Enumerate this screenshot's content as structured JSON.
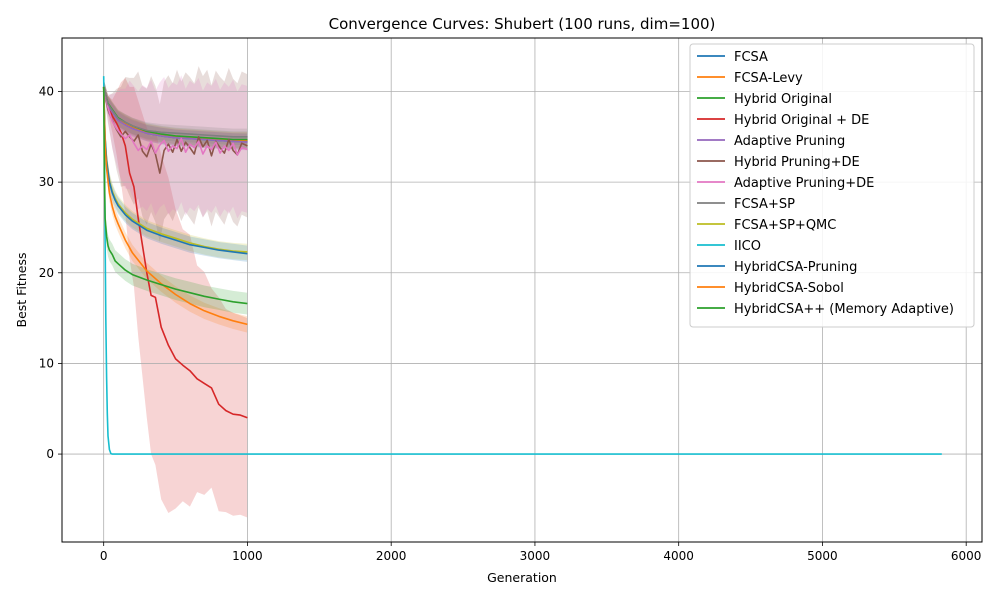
{
  "chart_data": {
    "type": "line",
    "title": "Convergence Curves: Shubert (100 runs, dim=100)",
    "xlabel": "Generation",
    "ylabel": "Best Fitness",
    "xlim": [
      -290,
      6110
    ],
    "ylim": [
      -9.7,
      45.9
    ],
    "xticks": [
      0,
      1000,
      2000,
      3000,
      4000,
      5000,
      6000
    ],
    "yticks": [
      0,
      10,
      20,
      30,
      40
    ],
    "grid": true,
    "legend_position": "top-right",
    "series": [
      {
        "name": "FCSA",
        "color": "#1f77b4",
        "x": [
          0,
          30,
          60,
          100,
          150,
          200,
          300,
          400,
          500,
          600,
          700,
          800,
          900,
          1000
        ],
        "y": [
          40.5,
          38.5,
          37.8,
          36.9,
          36.4,
          36.0,
          35.4,
          35.1,
          34.9,
          34.8,
          34.7,
          34.6,
          34.5,
          34.5
        ],
        "band": [
          0.9,
          0.9,
          0.9,
          0.9,
          0.9,
          0.9,
          0.9,
          0.9,
          0.9,
          0.9,
          0.9,
          0.9,
          0.9,
          0.9
        ]
      },
      {
        "name": "FCSA-Levy",
        "color": "#ff7f0e",
        "x": [
          0,
          30,
          60,
          100,
          150,
          200,
          300,
          400,
          500,
          600,
          700,
          800,
          900,
          1000
        ],
        "y": [
          40.5,
          38.6,
          37.9,
          37.0,
          36.5,
          36.1,
          35.5,
          35.2,
          35.0,
          34.9,
          34.8,
          34.7,
          34.6,
          34.6
        ],
        "band": [
          0.9,
          0.9,
          0.9,
          0.9,
          0.9,
          0.9,
          0.9,
          0.9,
          0.9,
          0.9,
          0.9,
          0.9,
          0.9,
          0.9
        ]
      },
      {
        "name": "Hybrid Original",
        "color": "#2ca02c",
        "x": [
          0,
          30,
          60,
          100,
          150,
          200,
          300,
          400,
          500,
          600,
          700,
          800,
          900,
          1000
        ],
        "y": [
          40.5,
          38.7,
          38.0,
          37.1,
          36.6,
          36.2,
          35.6,
          35.3,
          35.1,
          35.0,
          34.9,
          34.8,
          34.7,
          34.7
        ],
        "band": [
          0.9,
          0.9,
          0.9,
          0.9,
          0.9,
          0.9,
          0.9,
          0.9,
          0.9,
          0.9,
          0.9,
          0.9,
          0.9,
          0.9
        ]
      },
      {
        "name": "Hybrid Original + DE",
        "color": "#d62728",
        "x": [
          0,
          30,
          60,
          90,
          120,
          150,
          180,
          210,
          240,
          270,
          300,
          330,
          360,
          400,
          450,
          500,
          550,
          600,
          650,
          700,
          750,
          800,
          850,
          900,
          950,
          1000
        ],
        "y": [
          40.5,
          38.5,
          37.3,
          36.5,
          35.5,
          34.0,
          31.0,
          29.5,
          26.0,
          23.0,
          20.0,
          17.5,
          17.3,
          14.0,
          12.0,
          10.5,
          9.8,
          9.2,
          8.3,
          7.8,
          7.3,
          5.5,
          4.8,
          4.4,
          4.3,
          4.0
        ],
        "band": [
          0.5,
          1.0,
          1.8,
          3.5,
          5.5,
          7.5,
          9.5,
          11.0,
          13.0,
          14.5,
          16.0,
          17.5,
          18.5,
          19.0,
          18.5,
          16.5,
          15.0,
          15.0,
          12.5,
          12.3,
          11.0,
          11.8,
          11.2,
          11.2,
          11.0,
          11.0
        ]
      },
      {
        "name": "Adaptive Pruning",
        "color": "#9467bd",
        "x": [
          0,
          30,
          60,
          100,
          150,
          200,
          300,
          400,
          500,
          600,
          700,
          800,
          900,
          1000
        ],
        "y": [
          40.5,
          38.4,
          37.7,
          36.8,
          36.3,
          35.9,
          35.4,
          35.1,
          34.9,
          34.8,
          34.7,
          34.6,
          34.5,
          34.4
        ],
        "band": [
          0.9,
          0.9,
          0.9,
          0.9,
          0.9,
          0.9,
          0.9,
          0.9,
          0.9,
          0.9,
          0.9,
          0.9,
          0.9,
          0.9
        ]
      },
      {
        "name": "Hybrid Pruning+DE",
        "color": "#8c564b",
        "x": [
          0,
          30,
          60,
          90,
          120,
          150,
          180,
          210,
          240,
          270,
          300,
          330,
          360,
          390,
          420,
          450,
          480,
          510,
          540,
          570,
          600,
          630,
          660,
          690,
          720,
          750,
          780,
          810,
          840,
          870,
          900,
          930,
          960,
          1000
        ],
        "y": [
          40.5,
          38.0,
          36.8,
          35.8,
          35.0,
          35.6,
          35.0,
          34.5,
          35.2,
          33.4,
          32.8,
          34.2,
          33.1,
          31.0,
          33.5,
          34.2,
          33.3,
          34.7,
          33.4,
          34.4,
          33.8,
          33.1,
          35.0,
          33.9,
          34.6,
          32.9,
          34.5,
          33.8,
          33.2,
          34.7,
          33.5,
          33.0,
          34.3,
          34.0
        ],
        "band": [
          0.5,
          1.5,
          3.0,
          4.5,
          5.5,
          6.0,
          6.5,
          7.0,
          7.0,
          7.2,
          7.5,
          7.5,
          7.5,
          7.6,
          7.6,
          7.6,
          7.6,
          7.7,
          7.7,
          7.7,
          7.8,
          7.8,
          7.8,
          7.8,
          7.8,
          7.8,
          7.8,
          7.8,
          7.9,
          7.9,
          7.9,
          7.9,
          7.9,
          7.9
        ]
      },
      {
        "name": "Adaptive Pruning+DE",
        "color": "#e377c2",
        "x": [
          0,
          30,
          60,
          90,
          120,
          150,
          180,
          210,
          240,
          270,
          300,
          330,
          360,
          390,
          420,
          450,
          480,
          510,
          540,
          570,
          600,
          630,
          660,
          690,
          720,
          750,
          780,
          810,
          840,
          870,
          900,
          930,
          960,
          1000
        ],
        "y": [
          40.5,
          38.2,
          36.7,
          35.9,
          35.3,
          34.8,
          35.2,
          34.3,
          33.5,
          34.0,
          33.6,
          34.5,
          33.2,
          34.1,
          34.6,
          33.4,
          34.0,
          33.7,
          34.8,
          33.3,
          34.2,
          33.8,
          34.5,
          33.1,
          34.0,
          33.6,
          34.4,
          33.2,
          34.0,
          33.5,
          34.3,
          33.0,
          33.8,
          33.6
        ],
        "band": [
          0.5,
          1.5,
          3.0,
          4.0,
          5.0,
          5.5,
          6.0,
          6.3,
          6.5,
          6.7,
          6.8,
          6.8,
          6.9,
          6.9,
          7.0,
          7.0,
          7.0,
          7.0,
          7.0,
          7.0,
          7.0,
          7.0,
          7.0,
          7.0,
          7.0,
          7.0,
          7.0,
          7.0,
          7.0,
          7.0,
          7.0,
          7.0,
          7.0,
          7.0
        ]
      },
      {
        "name": "FCSA+SP",
        "color": "#7f7f7f",
        "x": [
          0,
          30,
          60,
          100,
          150,
          200,
          300,
          400,
          500,
          600,
          700,
          800,
          900,
          1000
        ],
        "y": [
          40.5,
          38.6,
          37.9,
          37.0,
          36.6,
          36.2,
          35.7,
          35.5,
          35.4,
          35.3,
          35.2,
          35.1,
          35.0,
          35.0
        ],
        "band": [
          0.9,
          0.9,
          0.9,
          0.9,
          0.9,
          0.9,
          0.9,
          0.9,
          0.9,
          0.9,
          0.9,
          0.9,
          0.9,
          0.9
        ]
      },
      {
        "name": "FCSA+SP+QMC",
        "color": "#bcbd22",
        "x": [
          0,
          10,
          20,
          40,
          60,
          80,
          100,
          150,
          200,
          300,
          400,
          500,
          600,
          700,
          800,
          900,
          1000
        ],
        "y": [
          40.5,
          35.0,
          32.5,
          30.2,
          29.0,
          28.2,
          27.6,
          26.6,
          25.9,
          24.9,
          24.3,
          23.8,
          23.3,
          22.9,
          22.6,
          22.4,
          22.3
        ],
        "band": [
          0.9,
          0.9,
          0.9,
          0.9,
          0.9,
          0.9,
          0.9,
          0.9,
          0.9,
          0.9,
          0.9,
          0.9,
          0.9,
          0.9,
          0.9,
          0.9,
          0.9
        ]
      },
      {
        "name": "IICO",
        "color": "#17becf",
        "x": [
          0,
          5,
          10,
          15,
          20,
          25,
          30,
          40,
          50,
          60,
          100,
          1000,
          3000,
          5000,
          5830
        ],
        "y": [
          41.7,
          34.0,
          24.0,
          15.0,
          8.5,
          4.5,
          2.0,
          0.5,
          0.05,
          0.0,
          0.0,
          0.0,
          0.0,
          0.0,
          0.0
        ],
        "band": [
          0,
          0,
          0,
          0,
          0,
          0,
          0,
          0,
          0,
          0,
          0,
          0,
          0,
          0,
          0
        ]
      },
      {
        "name": "HybridCSA-Pruning",
        "color": "#1f77b4",
        "x": [
          0,
          10,
          20,
          40,
          60,
          80,
          100,
          150,
          200,
          300,
          400,
          500,
          600,
          700,
          800,
          900,
          1000
        ],
        "y": [
          40.5,
          34.8,
          32.3,
          30.0,
          28.8,
          28.0,
          27.4,
          26.4,
          25.7,
          24.7,
          24.1,
          23.6,
          23.1,
          22.8,
          22.5,
          22.3,
          22.1
        ],
        "band": [
          0.9,
          0.9,
          0.9,
          0.9,
          0.9,
          0.9,
          0.9,
          0.9,
          0.9,
          0.9,
          0.9,
          0.9,
          0.9,
          0.9,
          0.9,
          0.9,
          0.9
        ]
      },
      {
        "name": "HybridCSA-Sobol",
        "color": "#ff7f0e",
        "x": [
          0,
          10,
          20,
          40,
          60,
          80,
          100,
          150,
          200,
          300,
          400,
          500,
          600,
          700,
          800,
          900,
          1000
        ],
        "y": [
          40.5,
          34.0,
          31.5,
          28.8,
          27.3,
          26.2,
          25.4,
          23.6,
          22.2,
          20.2,
          18.8,
          17.6,
          16.6,
          15.8,
          15.2,
          14.7,
          14.3
        ],
        "band": [
          0.9,
          0.9,
          0.9,
          0.9,
          0.9,
          0.9,
          0.9,
          0.9,
          0.9,
          0.9,
          0.9,
          0.9,
          0.9,
          0.9,
          0.9,
          0.9,
          0.9
        ]
      },
      {
        "name": "HybridCSA++ (Memory Adaptive)",
        "color": "#2ca02c",
        "x": [
          0,
          5,
          10,
          20,
          30,
          40,
          60,
          80,
          100,
          150,
          200,
          300,
          400,
          500,
          600,
          700,
          800,
          900,
          1000
        ],
        "y": [
          40.5,
          31.0,
          26.0,
          24.0,
          23.0,
          22.5,
          22.0,
          21.3,
          21.0,
          20.3,
          19.8,
          19.2,
          18.7,
          18.2,
          17.8,
          17.4,
          17.1,
          16.8,
          16.6
        ],
        "band": [
          0.9,
          1.0,
          1.2,
          1.2,
          1.2,
          1.2,
          1.2,
          1.2,
          1.2,
          1.2,
          1.2,
          1.2,
          1.2,
          1.2,
          1.2,
          1.2,
          1.2,
          1.2,
          1.2
        ]
      }
    ]
  }
}
